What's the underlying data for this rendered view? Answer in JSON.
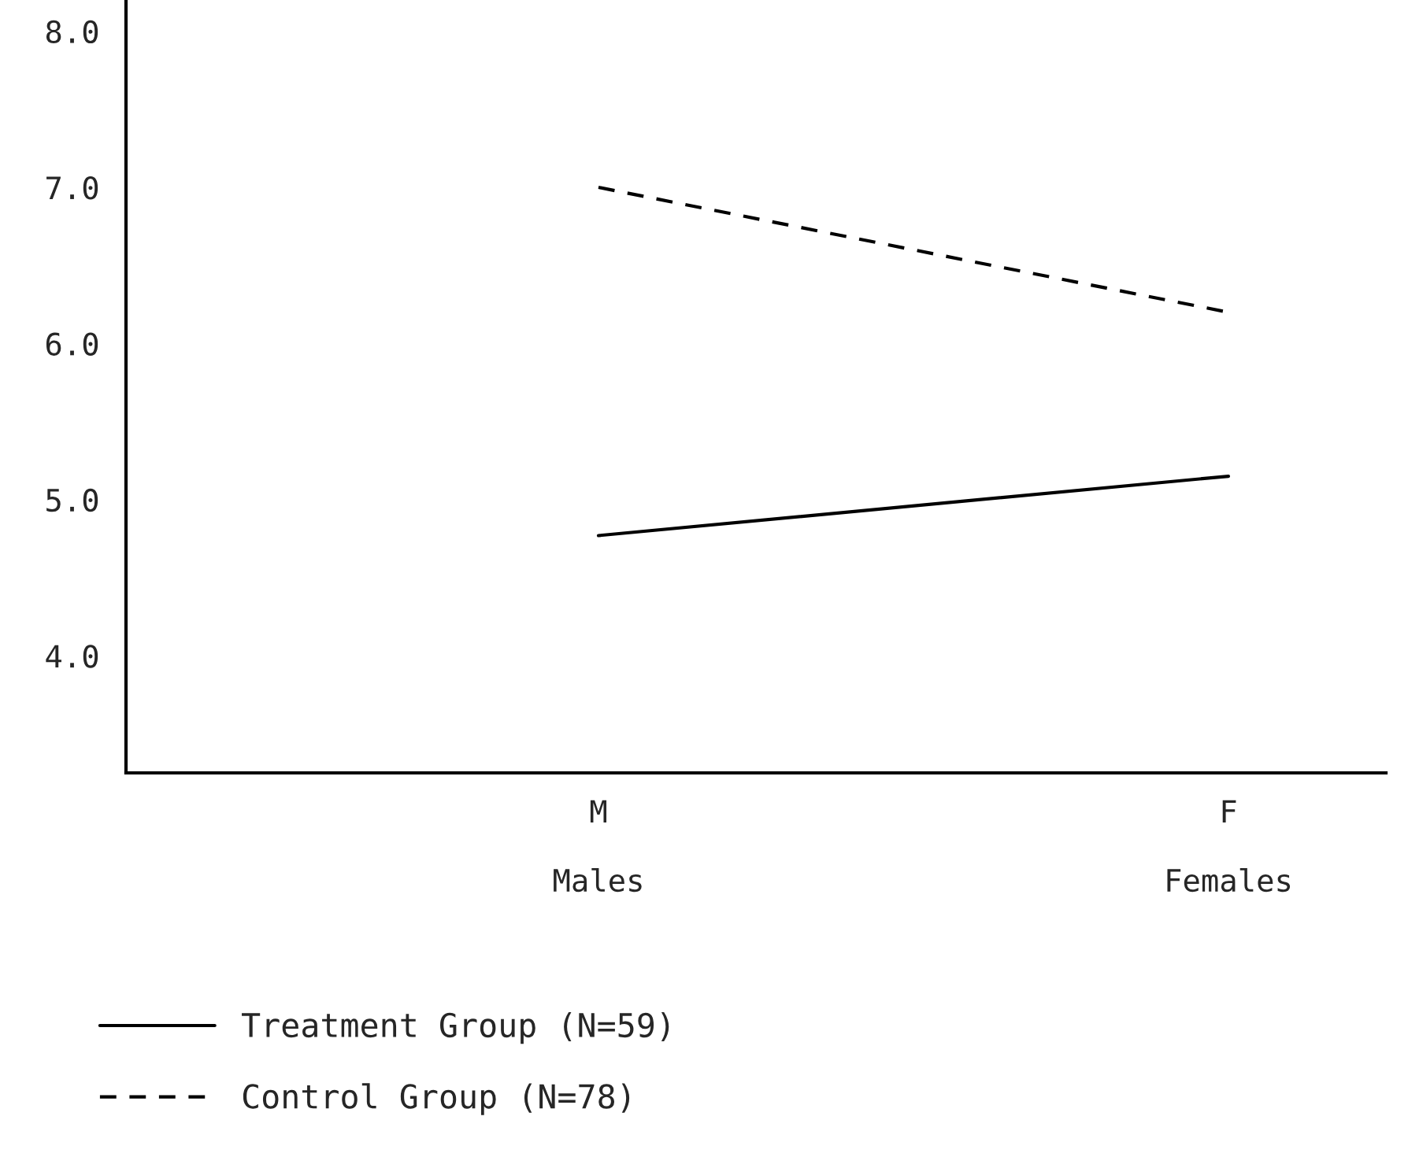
{
  "chart_data": {
    "type": "line",
    "categories": [
      "M\n\nMales",
      "F\n\nFemales"
    ],
    "series": [
      {
        "name": "Treatment Group (N=59)",
        "color": "#000000",
        "line_style": "solid",
        "values": [
          4.77,
          5.15
        ]
      },
      {
        "name": "Control Group (N=78)",
        "color": "#000000",
        "line_style": "dashed",
        "values": [
          7.0,
          6.2
        ]
      }
    ],
    "ylim": [
      3.25,
      8.2
    ],
    "yticks": [
      {
        "value": 4,
        "label": "4.0"
      },
      {
        "value": 5,
        "label": "5.0"
      },
      {
        "value": 6,
        "label": "6.0"
      },
      {
        "value": 7,
        "label": "7.0"
      },
      {
        "value": 8,
        "label": "8.0"
      }
    ],
    "grid": false,
    "legend": "bottom left"
  }
}
